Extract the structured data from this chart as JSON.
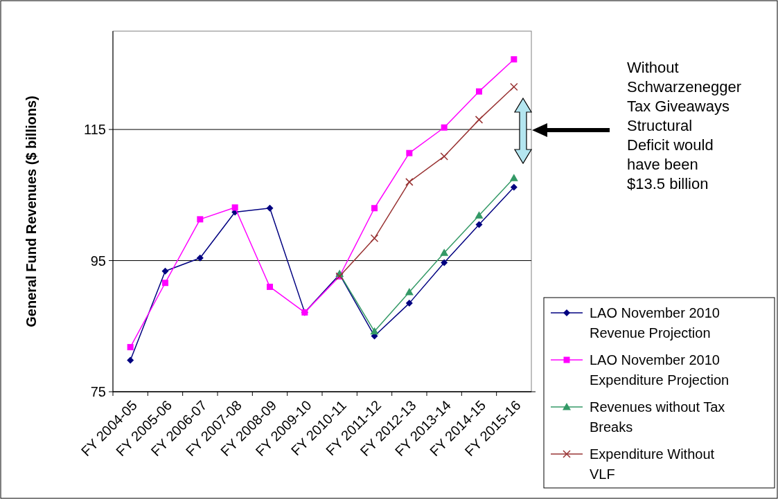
{
  "chart_data": {
    "type": "line",
    "ylabel": "General Fund Revenues ($ billions)",
    "categories": [
      "FY 2004-05",
      "FY 2005-06",
      "FY 2006-07",
      "FY 2007-08",
      "FY 2008-09",
      "FY 2009-10",
      "FY 2010-11",
      "FY 2011-12",
      "FY 2012-13",
      "FY 2013-14",
      "FY 2014-15",
      "FY 2015-16"
    ],
    "series": [
      {
        "name": "LAO November 2010 Revenue Projection",
        "color": "#000080",
        "marker": "diamond",
        "values": [
          79.8,
          93.4,
          95.4,
          102.4,
          103.0,
          87.1,
          92.9,
          83.5,
          88.5,
          94.7,
          100.5,
          106.2
        ]
      },
      {
        "name": "LAO November 2010 Expenditure Projection",
        "color": "#ff00ff",
        "marker": "square",
        "values": [
          81.8,
          91.6,
          101.3,
          103.1,
          91.0,
          87.1,
          92.6,
          103.0,
          111.4,
          115.3,
          120.8,
          125.7
        ]
      },
      {
        "name": "Revenues without Tax Breaks",
        "color": "#339966",
        "marker": "triangle",
        "values": [
          null,
          null,
          null,
          null,
          null,
          null,
          93.0,
          84.2,
          90.2,
          96.2,
          101.9,
          107.6
        ]
      },
      {
        "name": "Expenditure Without VLF",
        "color": "#993333",
        "marker": "cross",
        "values": [
          null,
          null,
          null,
          null,
          null,
          null,
          92.6,
          98.4,
          107.0,
          110.9,
          116.5,
          121.5
        ]
      }
    ],
    "ylim": [
      75,
      130
    ],
    "yticks": [
      75,
      95,
      115
    ],
    "grid": "y",
    "legend": "right",
    "annotations": [
      "Without Schwarzenegger Tax Giveaways Structural Deficit would have been $13.5 billion"
    ]
  }
}
